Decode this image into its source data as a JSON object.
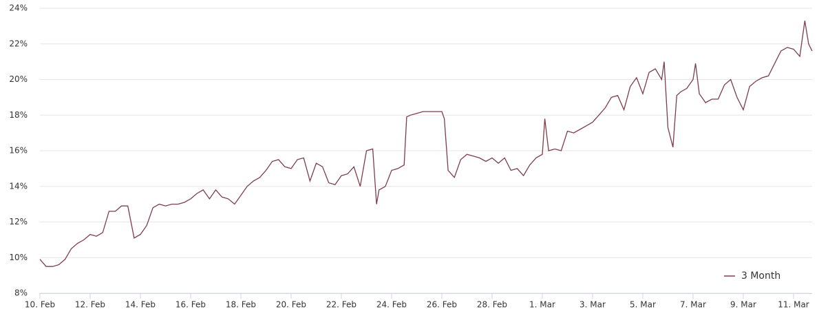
{
  "chart_data": {
    "type": "line",
    "x": [
      0,
      0.25,
      0.5,
      0.75,
      1,
      1.25,
      1.5,
      1.75,
      2,
      2.25,
      2.5,
      2.75,
      3,
      3.25,
      3.5,
      3.75,
      4,
      4.25,
      4.5,
      4.75,
      5,
      5.25,
      5.5,
      5.75,
      6,
      6.25,
      6.5,
      6.75,
      7,
      7.25,
      7.5,
      7.75,
      8,
      8.25,
      8.5,
      8.75,
      9,
      9.25,
      9.5,
      9.75,
      10,
      10.25,
      10.5,
      10.75,
      11,
      11.25,
      11.5,
      11.75,
      12,
      12.25,
      12.5,
      12.75,
      13,
      13.25,
      13.4,
      13.5,
      13.75,
      14,
      14.25,
      14.5,
      14.6,
      14.75,
      15,
      15.25,
      15.5,
      15.75,
      16,
      16.1,
      16.25,
      16.5,
      16.75,
      17,
      17.25,
      17.5,
      17.75,
      18,
      18.25,
      18.5,
      18.75,
      19,
      19.25,
      19.5,
      19.75,
      20,
      20.1,
      20.25,
      20.5,
      20.75,
      21,
      21.25,
      21.5,
      21.75,
      22,
      22.25,
      22.5,
      22.75,
      23,
      23.25,
      23.5,
      23.75,
      24,
      24.25,
      24.5,
      24.75,
      24.85,
      25,
      25.2,
      25.35,
      25.5,
      25.75,
      26,
      26.1,
      26.25,
      26.5,
      26.75,
      27,
      27.25,
      27.5,
      27.75,
      28,
      28.25,
      28.5,
      28.75,
      29,
      29.25,
      29.5,
      29.75,
      30,
      30.25,
      30.45,
      30.6,
      30.74
    ],
    "series": [
      {
        "name": "3 Month",
        "color": "#7d3c4c",
        "values": [
          9.9,
          9.5,
          9.5,
          9.6,
          9.9,
          10.5,
          10.8,
          11.0,
          11.3,
          11.2,
          11.4,
          12.6,
          12.6,
          12.9,
          12.9,
          11.1,
          11.3,
          11.8,
          12.8,
          13.0,
          12.9,
          13.0,
          13.0,
          13.1,
          13.3,
          13.6,
          13.8,
          13.3,
          13.8,
          13.4,
          13.3,
          13.0,
          13.5,
          14.0,
          14.3,
          14.5,
          14.9,
          15.4,
          15.5,
          15.1,
          15.0,
          15.5,
          15.6,
          14.3,
          15.3,
          15.1,
          14.2,
          14.1,
          14.6,
          14.7,
          15.1,
          14.0,
          16.0,
          16.1,
          13.0,
          13.8,
          14.0,
          14.9,
          15.0,
          15.2,
          17.9,
          18.0,
          18.1,
          18.2,
          18.2,
          18.2,
          18.2,
          17.8,
          14.9,
          14.5,
          15.5,
          15.8,
          15.7,
          15.6,
          15.4,
          15.6,
          15.3,
          15.6,
          14.9,
          15.0,
          14.6,
          15.2,
          15.6,
          15.8,
          17.8,
          16.0,
          16.1,
          16.0,
          17.1,
          17.0,
          17.2,
          17.4,
          17.6,
          18.0,
          18.4,
          19.0,
          19.1,
          18.3,
          19.6,
          20.1,
          19.2,
          20.4,
          20.6,
          20.0,
          21.0,
          17.3,
          16.2,
          19.1,
          19.3,
          19.5,
          20.0,
          20.9,
          19.2,
          18.7,
          18.9,
          18.9,
          19.7,
          20.0,
          19.0,
          18.3,
          19.6,
          19.9,
          20.1,
          20.2,
          20.9,
          21.6,
          21.8,
          21.7,
          21.3,
          23.3,
          22.0,
          21.6
        ]
      }
    ],
    "xlim": [
      0,
      30.74
    ],
    "xticks": [
      {
        "value": 0,
        "label": "10. Feb"
      },
      {
        "value": 2,
        "label": "12. Feb"
      },
      {
        "value": 4,
        "label": "14. Feb"
      },
      {
        "value": 6,
        "label": "16. Feb"
      },
      {
        "value": 8,
        "label": "18. Feb"
      },
      {
        "value": 10,
        "label": "20. Feb"
      },
      {
        "value": 12,
        "label": "22. Feb"
      },
      {
        "value": 14,
        "label": "24. Feb"
      },
      {
        "value": 16,
        "label": "26. Feb"
      },
      {
        "value": 18,
        "label": "28. Feb"
      },
      {
        "value": 20,
        "label": "1. Mar"
      },
      {
        "value": 22,
        "label": "3. Mar"
      },
      {
        "value": 24,
        "label": "5. Mar"
      },
      {
        "value": 26,
        "label": "7. Mar"
      },
      {
        "value": 28,
        "label": "9. Mar"
      },
      {
        "value": 30,
        "label": "11. Mar"
      }
    ],
    "ylim": [
      8,
      24
    ],
    "yticks": [
      {
        "value": 8,
        "label": "8%"
      },
      {
        "value": 10,
        "label": "10%"
      },
      {
        "value": 12,
        "label": "12%"
      },
      {
        "value": 14,
        "label": "14%"
      },
      {
        "value": 16,
        "label": "16%"
      },
      {
        "value": 18,
        "label": "18%"
      },
      {
        "value": 20,
        "label": "20%"
      },
      {
        "value": 22,
        "label": "22%"
      },
      {
        "value": 24,
        "label": "24%"
      }
    ],
    "grid": true,
    "legend": "bottom-right"
  }
}
